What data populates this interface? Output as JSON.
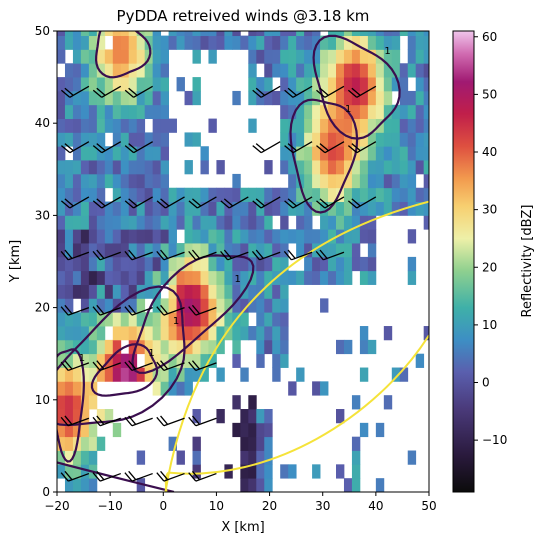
{
  "chart_data": {
    "type": "heatmap",
    "title": "PyDDA retreived winds @3.18 km",
    "xlabel": "X [km]",
    "ylabel": "Y [km]",
    "xlim": [
      -20,
      50
    ],
    "ylim": [
      0,
      50
    ],
    "xticks": [
      -20,
      -10,
      0,
      10,
      20,
      30,
      40,
      50
    ],
    "yticks": [
      0,
      10,
      20,
      30,
      40,
      50
    ],
    "colorbar": {
      "label": "Reflectivity [dBZ]",
      "range": [
        -19,
        61
      ],
      "ticks": [
        -10,
        0,
        10,
        20,
        30,
        40,
        50,
        60
      ],
      "colormap": "pyart_HomeyerRainbow"
    },
    "reflectivity_regions": [
      {
        "name": "NE core",
        "x": 36,
        "y": 44,
        "dbz": 48
      },
      {
        "name": "NW core",
        "x": -8,
        "y": 48,
        "dbz": 38
      },
      {
        "name": "mid core",
        "x": 32,
        "y": 37,
        "dbz": 42
      },
      {
        "name": "central core",
        "x": 5,
        "y": 20,
        "dbz": 52
      },
      {
        "name": "SW core",
        "x": -7,
        "y": 13,
        "dbz": 55
      },
      {
        "name": "W edge core",
        "x": -18,
        "y": 9,
        "dbz": 45
      },
      {
        "name": "southern weak echo",
        "x": 12,
        "y": 3,
        "dbz": -15
      }
    ],
    "contours": {
      "color": "#3b0f4f",
      "labels": [
        "1",
        "1",
        "1",
        "1",
        "1",
        "1",
        "1"
      ]
    },
    "range_rings": {
      "color": "#f5e33a"
    },
    "wind_barbs": {
      "color": "#000000",
      "flag": "NH",
      "rows_y": [
        2,
        8,
        14,
        20,
        26,
        32,
        38,
        44
      ],
      "cols_x": [
        -20,
        -14,
        -8,
        -2,
        4,
        10,
        16,
        22,
        28,
        34,
        40
      ]
    }
  }
}
